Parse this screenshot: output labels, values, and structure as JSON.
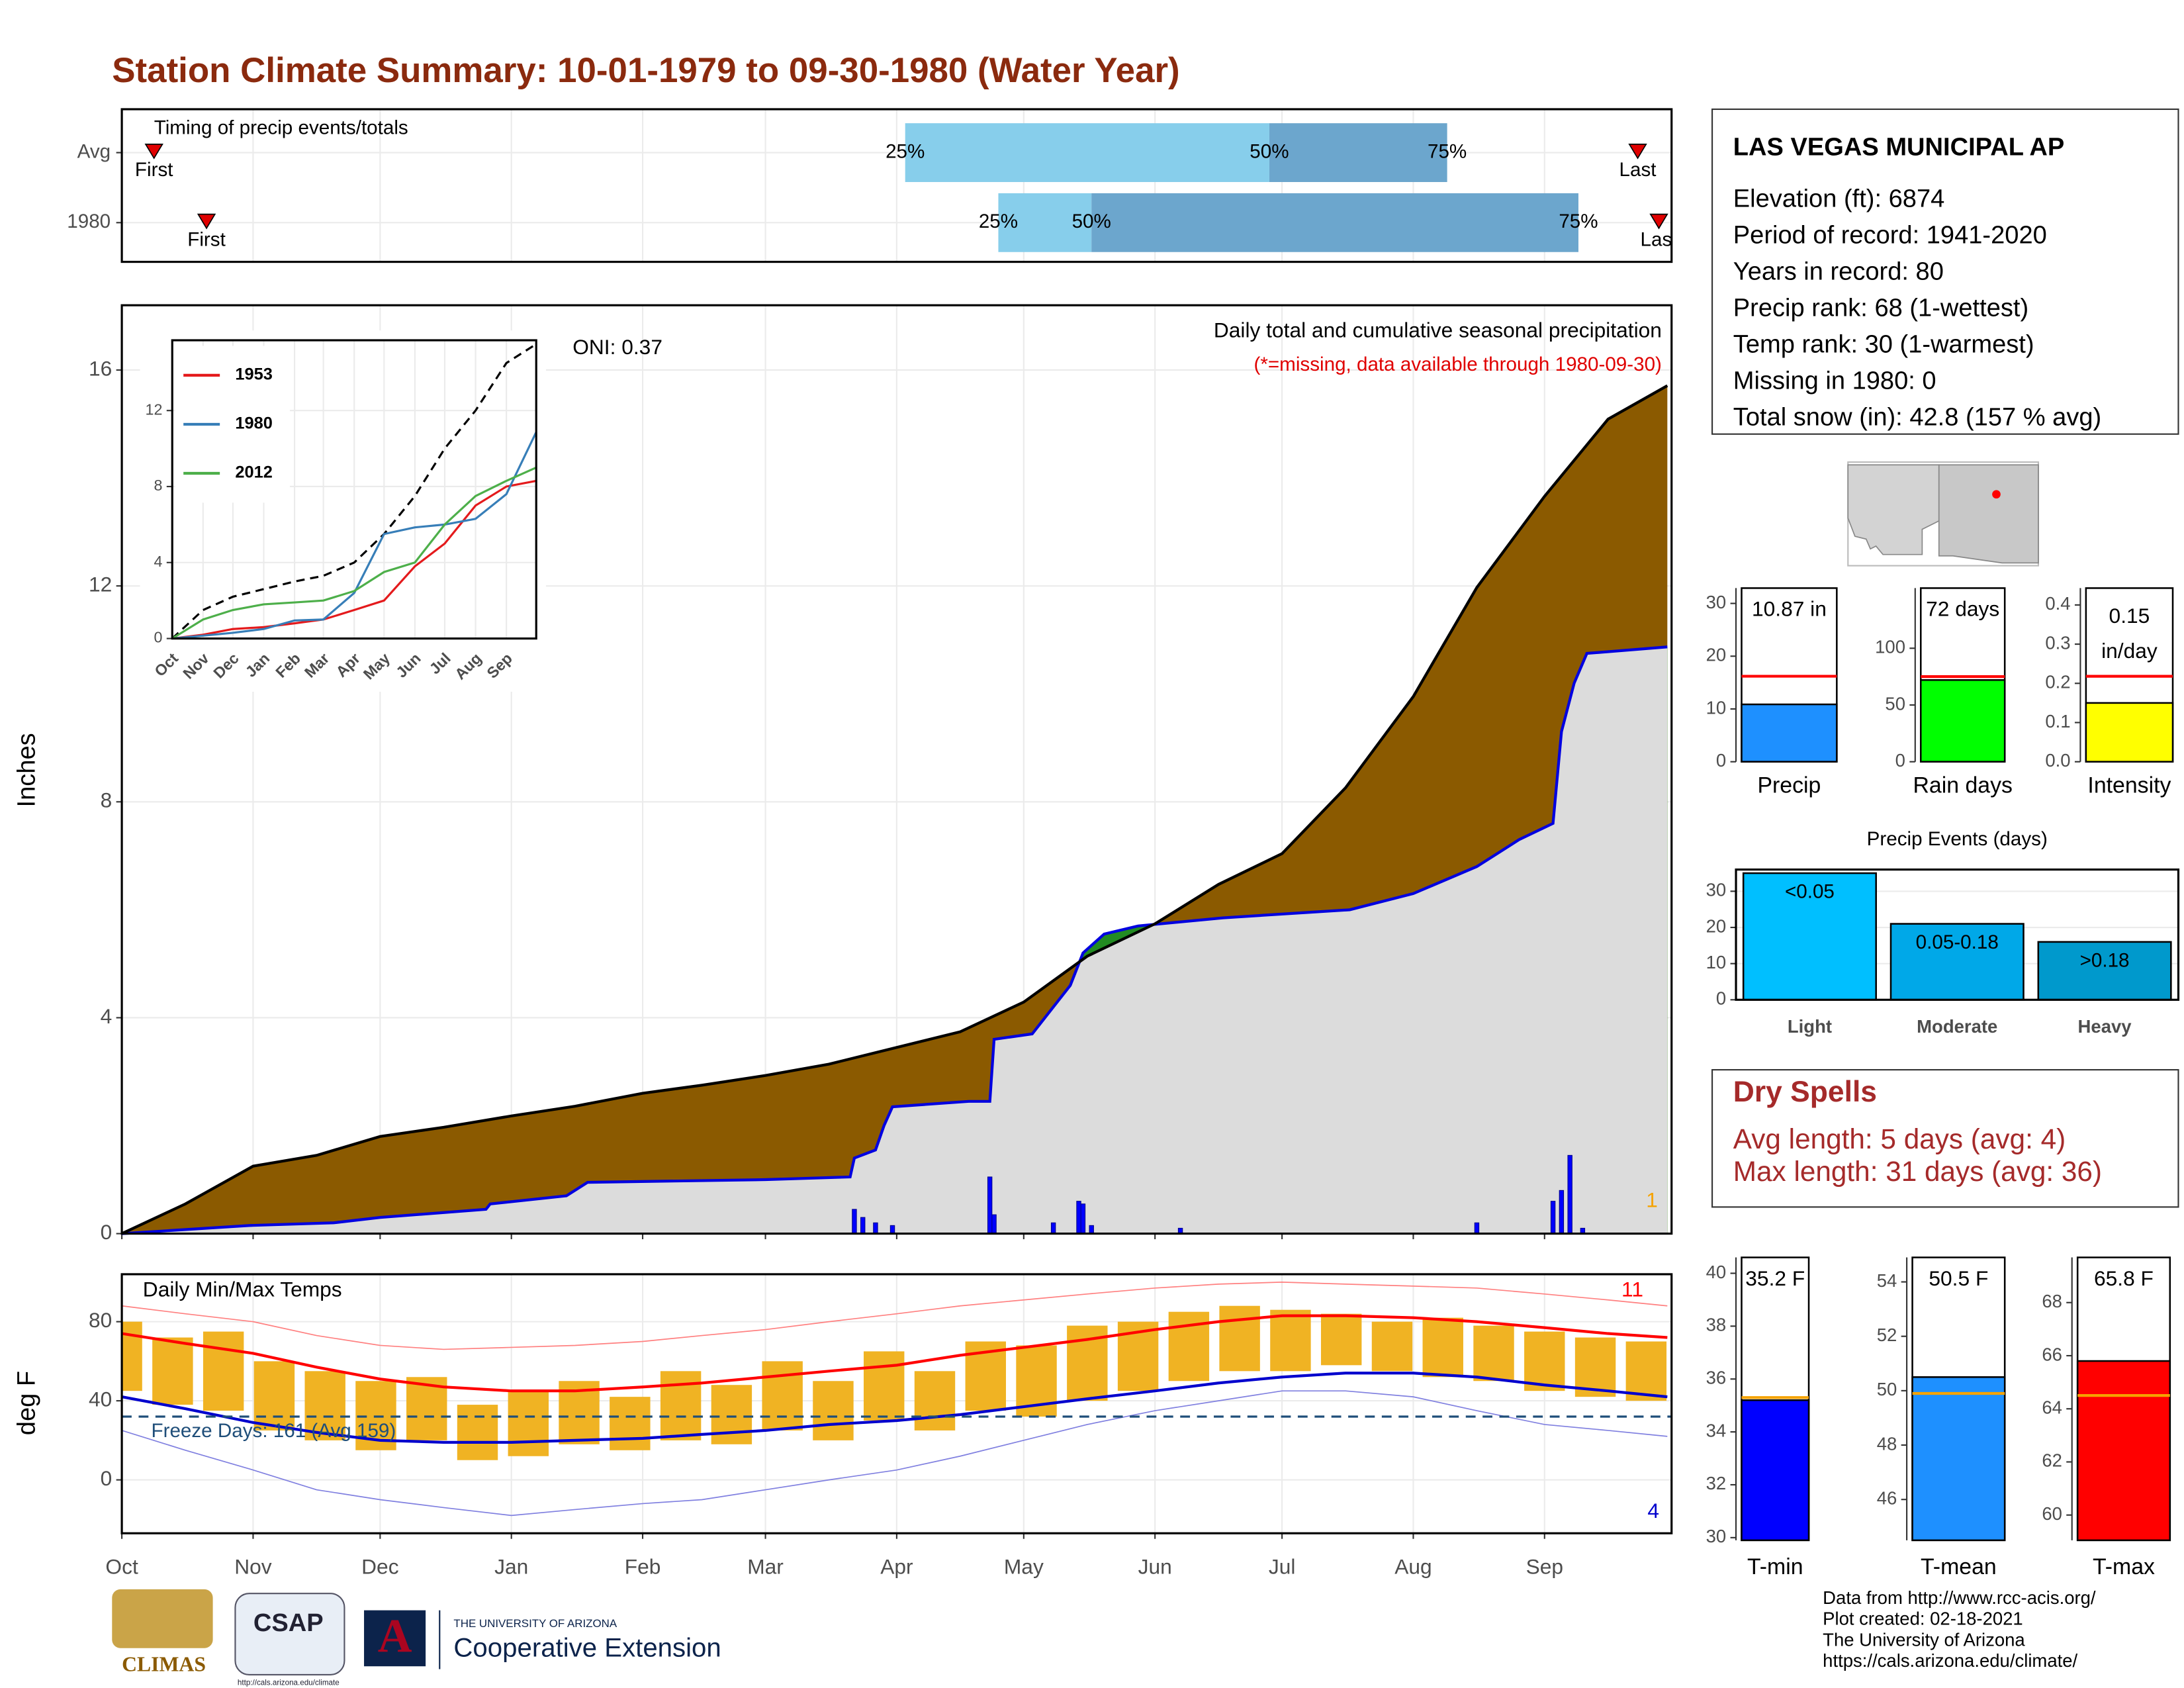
{
  "title": "Station Climate Summary: 10-01-1979 to 09-30-1980 (Water Year)",
  "station": {
    "name": "LAS VEGAS MUNICIPAL AP",
    "lines": [
      "Elevation (ft): 6874",
      "Period of record: 1941-2020",
      "Years in record: 80",
      "Precip rank: 68 (1-wettest)",
      "Temp rank: 30 (1-warmest)",
      "Missing in 1980: 0",
      "Total snow (in): 42.8 (157 % avg)"
    ]
  },
  "dry_spells": {
    "title": "Dry Spells",
    "lines": [
      "Avg length: 5 days (avg: 4)",
      "Max length: 31 days (avg: 36)"
    ]
  },
  "footer": [
    "Data from http://www.rcc-acis.org/",
    "Plot created: 02-18-2021",
    "The University of Arizona",
    "https://cals.arizona.edu/climate/"
  ],
  "logos": {
    "climas": "CLIMAS",
    "csap": "CSAP",
    "csap_url": "http://cals.arizona.edu/climate",
    "ua": "THE UNIVERSITY OF ARIZONA",
    "coop": "Cooperative Extension"
  },
  "chart_data": [
    {
      "type": "timing",
      "title": "Timing of precip events/totals",
      "categories": [
        "Avg",
        "1980"
      ],
      "first": [
        7.6,
        20
      ],
      "q25": [
        185,
        207
      ],
      "q50": [
        271,
        229
      ],
      "q75": [
        313,
        344
      ],
      "last": [
        358,
        363
      ],
      "labels": {
        "first": "First",
        "last": "Last",
        "q25": "25%",
        "q50": "50%",
        "q75": "75%"
      },
      "colors": {
        "light": "#87ceeb",
        "dark": "#6ca6cd",
        "marker": "#e00000"
      },
      "xlim": [
        0,
        366
      ],
      "xticks": [
        0,
        31,
        61,
        92,
        123,
        152,
        183,
        213,
        244,
        274,
        305,
        336
      ],
      "grid": true
    },
    {
      "type": "cumulative",
      "title": "Daily total and cumulative seasonal precipitation",
      "note": "(*=missing, data available through 1980-09-30)",
      "annotation": "ONI: 0.37",
      "ylabel": "Inches",
      "count_label": 1,
      "xlim": [
        0,
        366
      ],
      "xticks": [
        0,
        31,
        61,
        92,
        123,
        152,
        183,
        213,
        244,
        274,
        305,
        336
      ],
      "ylim": [
        0,
        17.2
      ],
      "yticks": [
        0,
        4,
        8,
        12,
        16
      ],
      "grid": true,
      "average": {
        "x": [
          0,
          15,
          31,
          46,
          61,
          76,
          92,
          107,
          123,
          137,
          152,
          167,
          183,
          198,
          213,
          228,
          244,
          259,
          274,
          289,
          305,
          320,
          336,
          351,
          365
        ],
        "values": [
          0,
          0.55,
          1.25,
          1.45,
          1.8,
          1.97,
          2.18,
          2.36,
          2.6,
          2.75,
          2.93,
          3.14,
          3.45,
          3.74,
          4.29,
          5.14,
          5.74,
          6.47,
          7.04,
          8.26,
          9.95,
          11.97,
          13.66,
          15.09,
          15.71
        ]
      },
      "current": {
        "x": [
          0,
          30,
          50,
          61,
          86,
          87,
          105,
          110,
          152,
          172,
          173,
          178,
          180,
          182,
          200,
          205,
          206,
          215,
          218,
          224,
          227,
          232,
          240,
          260,
          290,
          305,
          320,
          330,
          338,
          340,
          343,
          346,
          365
        ],
        "values": [
          0,
          0.15,
          0.2,
          0.3,
          0.45,
          0.55,
          0.7,
          0.95,
          1.0,
          1.05,
          1.4,
          1.55,
          2.0,
          2.35,
          2.45,
          2.45,
          3.6,
          3.7,
          4.0,
          4.6,
          5.2,
          5.55,
          5.7,
          5.85,
          6.0,
          6.3,
          6.8,
          7.3,
          7.6,
          9.3,
          10.2,
          10.75,
          10.87
        ]
      },
      "daily": {
        "x": [
          173,
          175,
          178,
          182,
          205,
          206,
          220,
          226,
          227,
          229,
          250,
          320,
          338,
          340,
          342,
          345
        ],
        "values": [
          0.45,
          0.3,
          0.2,
          0.15,
          1.05,
          0.35,
          0.2,
          0.6,
          0.55,
          0.15,
          0.1,
          0.2,
          0.6,
          0.8,
          1.45,
          0.1
        ]
      },
      "colors": {
        "above": "#8b5a00",
        "below": "#228b22",
        "fill": "#dcdcdc",
        "current": "#0000e0",
        "average": "#000000",
        "daily": "#0000ff",
        "count": "#f5a300"
      }
    },
    {
      "type": "line",
      "xlim": [
        0,
        366
      ],
      "xticks": [
        {
          "value": 0,
          "label": "Oct"
        },
        {
          "value": 31,
          "label": "Nov"
        },
        {
          "value": 61,
          "label": "Dec"
        },
        {
          "value": 92,
          "label": "Jan"
        },
        {
          "value": 123,
          "label": "Feb"
        },
        {
          "value": 152,
          "label": "Mar"
        },
        {
          "value": 183,
          "label": "Apr"
        },
        {
          "value": 213,
          "label": "May"
        },
        {
          "value": 244,
          "label": "Jun"
        },
        {
          "value": 274,
          "label": "Jul"
        },
        {
          "value": 305,
          "label": "Aug"
        },
        {
          "value": 336,
          "label": "Sep"
        }
      ],
      "ylim": [
        0,
        15.7
      ],
      "yticks": [
        0,
        4,
        8,
        12
      ],
      "grid": true,
      "x": [
        0,
        31,
        61,
        92,
        123,
        152,
        183,
        213,
        244,
        274,
        305,
        336,
        366
      ],
      "average": {
        "color": "#000000",
        "values": [
          0,
          1.5,
          2.2,
          2.6,
          3.0,
          3.3,
          4.0,
          5.5,
          7.5,
          10,
          12,
          14.5,
          15.5
        ]
      },
      "series": [
        {
          "name": "1953",
          "color": "#e41a1c",
          "values": [
            0,
            0.2,
            0.5,
            0.6,
            0.8,
            1.0,
            1.5,
            2.0,
            3.8,
            5.0,
            7.0,
            8.0,
            8.3
          ]
        },
        {
          "name": "1980",
          "color": "#377eb8",
          "values": [
            0,
            0.15,
            0.3,
            0.5,
            0.95,
            1.0,
            2.4,
            5.5,
            5.85,
            6.0,
            6.3,
            7.6,
            10.87
          ]
        },
        {
          "name": "2012",
          "color": "#4daf4a",
          "values": [
            0,
            1.0,
            1.5,
            1.8,
            1.9,
            2.0,
            2.5,
            3.5,
            4.0,
            6.0,
            7.5,
            8.3,
            9.0
          ]
        }
      ]
    },
    {
      "type": "temperature",
      "title": "Daily Min/Max Temps",
      "ylabel": "deg F",
      "ylim": [
        -27,
        104
      ],
      "yticks": [
        0,
        40,
        80
      ],
      "grid": true,
      "xlim": [
        0,
        366
      ],
      "xticks": [
        {
          "value": 0,
          "label": "Oct"
        },
        {
          "value": 31,
          "label": "Nov"
        },
        {
          "value": 61,
          "label": "Dec"
        },
        {
          "value": 92,
          "label": "Jan"
        },
        {
          "value": 123,
          "label": "Feb"
        },
        {
          "value": 152,
          "label": "Mar"
        },
        {
          "value": 183,
          "label": "Apr"
        },
        {
          "value": 213,
          "label": "May"
        },
        {
          "value": 244,
          "label": "Jun"
        },
        {
          "value": 274,
          "label": "Jul"
        },
        {
          "value": 305,
          "label": "Aug"
        },
        {
          "value": 336,
          "label": "Sep"
        }
      ],
      "freeze": {
        "value": 32,
        "label": "Freeze Days: 161 (Avg 159)"
      },
      "record_high_count": 11,
      "record_low_count": 4,
      "daily": {
        "x": [
          0,
          12,
          24,
          36,
          48,
          60,
          72,
          84,
          96,
          108,
          120,
          132,
          144,
          156,
          168,
          180,
          192,
          204,
          216,
          228,
          240,
          252,
          264,
          276,
          288,
          300,
          312,
          324,
          336,
          348,
          360
        ],
        "high": [
          80,
          72,
          75,
          60,
          55,
          50,
          52,
          38,
          45,
          50,
          42,
          55,
          48,
          60,
          50,
          65,
          55,
          70,
          68,
          78,
          80,
          85,
          88,
          86,
          84,
          80,
          82,
          78,
          75,
          72,
          70
        ],
        "low": [
          45,
          38,
          35,
          25,
          20,
          15,
          20,
          10,
          12,
          18,
          15,
          20,
          18,
          25,
          20,
          30,
          25,
          35,
          32,
          40,
          45,
          50,
          55,
          55,
          58,
          55,
          52,
          50,
          45,
          42,
          40
        ]
      },
      "normal": {
        "x": [
          0,
          15,
          31,
          46,
          61,
          76,
          92,
          107,
          123,
          137,
          152,
          167,
          183,
          198,
          213,
          228,
          244,
          259,
          274,
          289,
          305,
          320,
          336,
          351,
          365
        ],
        "avg_max": [
          74,
          69,
          64,
          57,
          51,
          47,
          45,
          45,
          47,
          49,
          52,
          55,
          58,
          63,
          67,
          71,
          76,
          80,
          83,
          83,
          82,
          80,
          77,
          74,
          72
        ],
        "avg_min": [
          42,
          36,
          29,
          24,
          20,
          19,
          19,
          20,
          21,
          23,
          25,
          28,
          30,
          33,
          37,
          41,
          45,
          49,
          52,
          54,
          54,
          52,
          48,
          45,
          42
        ],
        "record_max": [
          88,
          84,
          80,
          73,
          68,
          66,
          67,
          68,
          70,
          73,
          76,
          80,
          84,
          88,
          91,
          94,
          97,
          99,
          100,
          99,
          98,
          97,
          94,
          91,
          88
        ],
        "record_min": [
          25,
          15,
          5,
          -5,
          -10,
          -14,
          -18,
          -15,
          -12,
          -10,
          -5,
          0,
          5,
          12,
          20,
          28,
          35,
          40,
          45,
          45,
          42,
          35,
          28,
          25,
          22
        ]
      },
      "colors": {
        "daily": "#f0b323",
        "avg_max": "#ff0000",
        "avg_min": "#0000cd",
        "record_max": "#ff8080",
        "record_min": "#8080e0",
        "freeze": "#1f4e79"
      }
    },
    {
      "type": "summary_bar",
      "title": "Precip",
      "value": 10.87,
      "value_label": "10.87 in",
      "average": 16.2,
      "ylim": [
        0,
        32.9
      ],
      "yticks": [
        0,
        10,
        20,
        30
      ],
      "color": "#1e90ff",
      "avg_color": "#ff0000"
    },
    {
      "type": "summary_bar",
      "title": "Rain days",
      "value": 72,
      "value_label": "72 days",
      "average": 75,
      "ylim": [
        0,
        153
      ],
      "yticks": [
        0,
        50,
        100
      ],
      "color": "#00ff00",
      "avg_color": "#ff0000"
    },
    {
      "type": "summary_bar",
      "title": "Intensity",
      "value": 0.15,
      "value_label": "0.15",
      "unit": "in/day",
      "average": 0.218,
      "ylim": [
        0,
        0.443
      ],
      "yticks": [
        {
          "value": 0,
          "label": "0.0"
        },
        0.1,
        0.2,
        0.3,
        0.4
      ],
      "color": "#ffff00",
      "avg_color": "#ff0000"
    },
    {
      "type": "bar",
      "title": "Precip Events (days)",
      "categories": [
        "Light",
        "Moderate",
        "Heavy"
      ],
      "bin_labels": [
        "<0.05",
        "0.05-0.18",
        ">0.18"
      ],
      "values": [
        35,
        21,
        16
      ],
      "colors": [
        "#00bfff",
        "#00a8e8",
        "#0099cc"
      ],
      "ylim": [
        0,
        36
      ],
      "yticks": [
        0,
        10,
        20,
        30
      ],
      "grid": true
    },
    {
      "type": "summary_bar",
      "title": "T-min",
      "value": 35.2,
      "value_label": "35.2 F",
      "average": 35.3,
      "ylim": [
        29.9,
        40.6
      ],
      "yticks": [
        30,
        32,
        34,
        36,
        38,
        40
      ],
      "color": "#0000ff",
      "avg_color": "#f5a300"
    },
    {
      "type": "summary_bar",
      "title": "T-mean",
      "value": 50.5,
      "value_label": "50.5 F",
      "average": 49.9,
      "ylim": [
        44.5,
        54.9
      ],
      "yticks": [
        46,
        48,
        50,
        52,
        54
      ],
      "color": "#1e90ff",
      "avg_color": "#f5a300"
    },
    {
      "type": "summary_bar",
      "title": "T-max",
      "value": 65.8,
      "value_label": "65.8 F",
      "average": 64.5,
      "ylim": [
        59.05,
        69.7
      ],
      "yticks": [
        60,
        62,
        64,
        66,
        68
      ],
      "color": "#ff0000",
      "avg_color": "#f5a300"
    }
  ]
}
